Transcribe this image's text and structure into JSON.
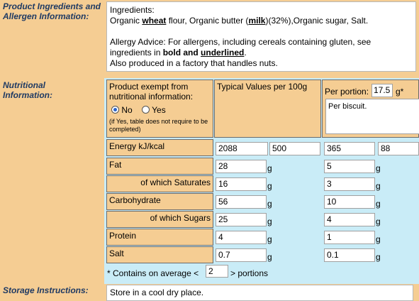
{
  "labels": {
    "ingredients": "Product Ingredients and Allergen Information:",
    "nutritional": "Nutritional Information:",
    "storage": "Storage Instructions:"
  },
  "ingredients": {
    "heading": "Ingredients:",
    "line_pre": "Organic ",
    "wheat": "wheat",
    "line_mid": " flour, Organic butter (",
    "milk": "milk",
    "line_post": ")(32%),Organic sugar, Salt.",
    "allergy_pre": "Allergy Advice: For allergens, including cereals containing gluten, see ingredients in ",
    "allergy_bold": "bold and ",
    "allergy_underline": "underlined",
    "allergy_post": ".",
    "factory": "Also produced in a factory that handles nuts."
  },
  "nutrition": {
    "exempt_label": "Product exempt from nutritional information:",
    "no_label": "No",
    "yes_label": "Yes",
    "exempt_selected": "No",
    "exempt_note": "(if Yes, table does not require to be completed)",
    "typical_header": "Typical Values per 100g",
    "per_portion_label": "Per portion:",
    "portion_size": "17.5",
    "portion_unit": "g*",
    "portion_desc": "Per biscuit.",
    "energy_label": "Energy kJ/kcal",
    "energy_kj_100": "2088",
    "energy_kcal_100": "500",
    "energy_kj_portion": "365",
    "energy_kcal_portion": "88",
    "unit_g": "g",
    "rows": [
      {
        "label": "Fat",
        "v100": "28",
        "vp": "5"
      },
      {
        "label": "of which Saturates",
        "v100": "16",
        "vp": "3"
      },
      {
        "label": "Carbohydrate",
        "v100": "56",
        "vp": "10"
      },
      {
        "label": "of which Sugars",
        "v100": "25",
        "vp": "4"
      },
      {
        "label": "Protein",
        "v100": "4",
        "vp": "1"
      },
      {
        "label": "Salt",
        "v100": "0.7",
        "vp": "0.1"
      }
    ],
    "portions_pre": "* Contains on average <",
    "portions_value": "2",
    "portions_post": "> portions"
  },
  "storage": {
    "text": "Store in a cool dry place."
  }
}
